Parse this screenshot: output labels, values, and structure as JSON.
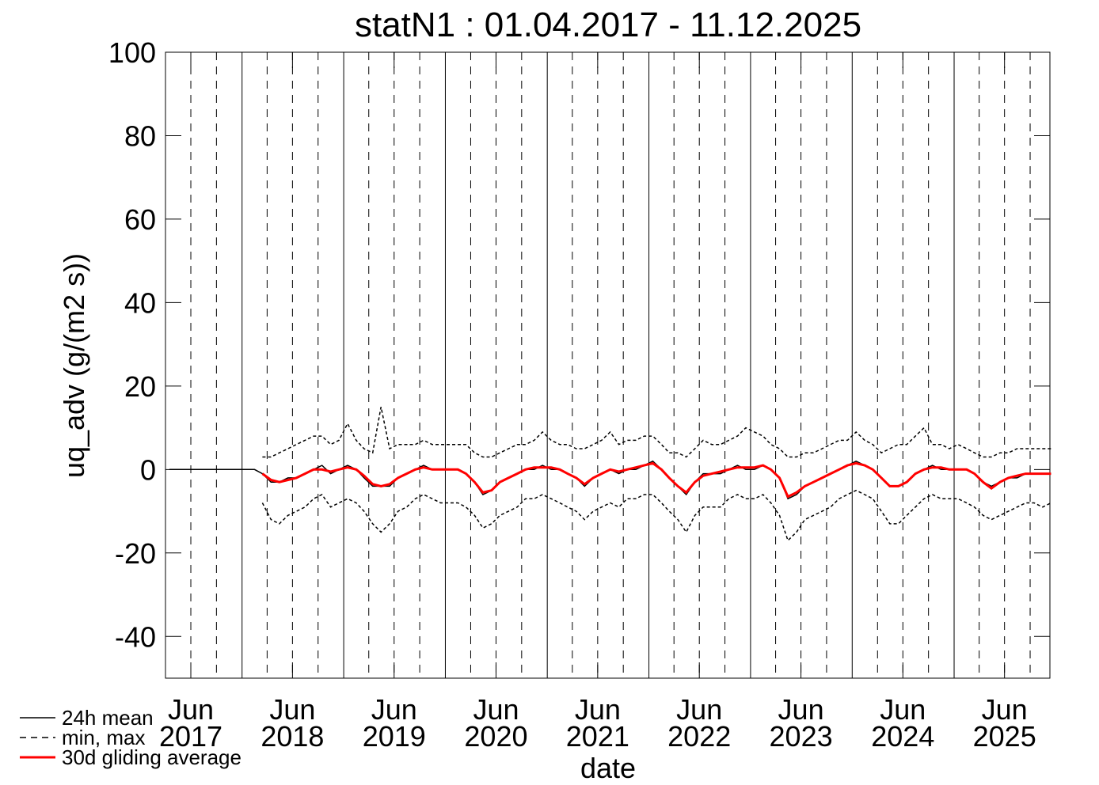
{
  "chart_data": {
    "type": "line",
    "title": "statN1 : 01.04.2017 - 11.12.2025",
    "xlabel": "date",
    "ylabel": "uq_adv (g/(m2 s))",
    "xlim": [
      "2017-04-01",
      "2025-12-11"
    ],
    "ylim": [
      -50,
      100
    ],
    "yticks": [
      -40,
      -20,
      0,
      20,
      40,
      60,
      80,
      100
    ],
    "xticks": [
      {
        "value": "2017-07-01",
        "label": [
          "Jun",
          "2017"
        ]
      },
      {
        "value": "2018-07-01",
        "label": [
          "Jun",
          "2018"
        ]
      },
      {
        "value": "2019-07-01",
        "label": [
          "Jun",
          "2019"
        ]
      },
      {
        "value": "2020-07-01",
        "label": [
          "Jun",
          "2020"
        ]
      },
      {
        "value": "2021-07-01",
        "label": [
          "Jun",
          "2021"
        ]
      },
      {
        "value": "2022-07-01",
        "label": [
          "Jun",
          "2022"
        ]
      },
      {
        "value": "2023-07-01",
        "label": [
          "Jun",
          "2023"
        ]
      },
      {
        "value": "2024-07-01",
        "label": [
          "Jun",
          "2024"
        ]
      },
      {
        "value": "2025-07-01",
        "label": [
          "Jun",
          "2025"
        ]
      }
    ],
    "xgrid_major": [
      "2018-01-01",
      "2019-01-01",
      "2020-01-01",
      "2021-01-01",
      "2022-01-01",
      "2023-01-01",
      "2024-01-01",
      "2025-01-01"
    ],
    "xgrid_minor": [
      "2017-07-01",
      "2017-10-01",
      "2018-04-01",
      "2018-07-01",
      "2018-10-01",
      "2019-04-01",
      "2019-07-01",
      "2019-10-01",
      "2020-04-01",
      "2020-07-01",
      "2020-10-01",
      "2021-04-01",
      "2021-07-01",
      "2021-10-01",
      "2022-04-01",
      "2022-07-01",
      "2022-10-01",
      "2023-04-01",
      "2023-07-01",
      "2023-10-01",
      "2024-04-01",
      "2024-07-01",
      "2024-10-01",
      "2025-04-01",
      "2025-07-01",
      "2025-10-01"
    ],
    "x": [
      "2017-04",
      "2017-05",
      "2017-06",
      "2017-07",
      "2017-08",
      "2017-09",
      "2017-10",
      "2017-11",
      "2017-12",
      "2018-01",
      "2018-02",
      "2018-03",
      "2018-04",
      "2018-05",
      "2018-06",
      "2018-07",
      "2018-08",
      "2018-09",
      "2018-10",
      "2018-11",
      "2018-12",
      "2019-01",
      "2019-02",
      "2019-03",
      "2019-04",
      "2019-05",
      "2019-06",
      "2019-07",
      "2019-08",
      "2019-09",
      "2019-10",
      "2019-11",
      "2019-12",
      "2020-01",
      "2020-02",
      "2020-03",
      "2020-04",
      "2020-05",
      "2020-06",
      "2020-07",
      "2020-08",
      "2020-09",
      "2020-10",
      "2020-11",
      "2020-12",
      "2021-01",
      "2021-02",
      "2021-03",
      "2021-04",
      "2021-05",
      "2021-06",
      "2021-07",
      "2021-08",
      "2021-09",
      "2021-10",
      "2021-11",
      "2021-12",
      "2022-01",
      "2022-02",
      "2022-03",
      "2022-04",
      "2022-05",
      "2022-06",
      "2022-07",
      "2022-08",
      "2022-09",
      "2022-10",
      "2022-11",
      "2022-12",
      "2023-01",
      "2023-02",
      "2023-03",
      "2023-04",
      "2023-05",
      "2023-06",
      "2023-07",
      "2023-08",
      "2023-09",
      "2023-10",
      "2023-11",
      "2023-12",
      "2024-01",
      "2024-02",
      "2024-03",
      "2024-04",
      "2024-05",
      "2024-06",
      "2024-07",
      "2024-08",
      "2024-09",
      "2024-10",
      "2024-11",
      "2024-12",
      "2025-01",
      "2025-02",
      "2025-03",
      "2025-04",
      "2025-05",
      "2025-06",
      "2025-07",
      "2025-08",
      "2025-09",
      "2025-10",
      "2025-11",
      "2025-12"
    ],
    "series": [
      {
        "name": "24h mean",
        "color": "#000000",
        "dash": false,
        "values": [
          0,
          0,
          0,
          0,
          0,
          0,
          0,
          0,
          0,
          0,
          0,
          -1,
          -3,
          -3,
          -2,
          -2,
          -1,
          0,
          1,
          -1,
          0,
          1,
          0,
          -2,
          -4,
          -4,
          -4,
          -2,
          -1,
          0,
          1,
          0,
          0,
          0,
          0,
          -1,
          -3,
          -6,
          -5,
          -3,
          -2,
          -1,
          0,
          0,
          1,
          0,
          0,
          -1,
          -2,
          -4,
          -2,
          -1,
          0,
          -1,
          0,
          0,
          1,
          2,
          0,
          -2,
          -4,
          -6,
          -3,
          -1,
          -1,
          -1,
          0,
          1,
          0,
          0,
          1,
          0,
          -2,
          -7,
          -6,
          -4,
          -3,
          -2,
          -1,
          0,
          1,
          2,
          1,
          0,
          -2,
          -4,
          -4,
          -3,
          -1,
          0,
          1,
          0,
          0,
          0,
          0,
          -1,
          -3,
          -4,
          -3,
          -2,
          -2,
          -1,
          -1,
          -1,
          -1
        ]
      },
      {
        "name": "min, max",
        "color": "#000000",
        "dash": true,
        "low": [
          null,
          null,
          null,
          null,
          null,
          null,
          null,
          null,
          null,
          null,
          null,
          -8,
          -12,
          -13,
          -11,
          -10,
          -9,
          -7,
          -6,
          -9,
          -8,
          -7,
          -8,
          -10,
          -13,
          -15,
          -13,
          -10,
          -9,
          -7,
          -6,
          -7,
          -8,
          -8,
          -8,
          -9,
          -11,
          -14,
          -13,
          -11,
          -10,
          -9,
          -7,
          -7,
          -6,
          -7,
          -8,
          -9,
          -10,
          -12,
          -10,
          -9,
          -8,
          -9,
          -7,
          -7,
          -6,
          -6,
          -8,
          -10,
          -12,
          -15,
          -11,
          -9,
          -9,
          -9,
          -7,
          -6,
          -7,
          -7,
          -6,
          -8,
          -11,
          -17,
          -15,
          -12,
          -11,
          -10,
          -9,
          -7,
          -6,
          -5,
          -6,
          -7,
          -10,
          -13,
          -13,
          -11,
          -9,
          -7,
          -6,
          -7,
          -7,
          -7,
          -8,
          -9,
          -11,
          -12,
          -11,
          -10,
          -9,
          -8,
          -8,
          -9,
          -8
        ],
        "high": [
          null,
          null,
          null,
          null,
          null,
          null,
          null,
          null,
          null,
          null,
          null,
          3,
          3,
          4,
          5,
          6,
          7,
          8,
          8,
          6,
          7,
          11,
          7,
          5,
          4,
          15,
          5,
          6,
          6,
          6,
          7,
          6,
          6,
          6,
          6,
          6,
          4,
          3,
          3,
          4,
          5,
          6,
          6,
          7,
          9,
          7,
          6,
          6,
          5,
          5,
          6,
          7,
          9,
          6,
          7,
          7,
          8,
          8,
          6,
          4,
          4,
          3,
          5,
          7,
          6,
          6,
          7,
          8,
          10,
          9,
          8,
          6,
          5,
          3,
          3,
          4,
          4,
          5,
          6,
          7,
          7,
          9,
          7,
          6,
          4,
          5,
          6,
          6,
          8,
          10,
          6,
          6,
          5,
          6,
          5,
          4,
          3,
          3,
          4,
          4,
          5,
          5,
          5,
          5,
          5
        ]
      },
      {
        "name": "30d gliding average",
        "color": "#ff0000",
        "dash": false,
        "values": [
          null,
          null,
          null,
          null,
          null,
          null,
          null,
          null,
          null,
          null,
          null,
          -1,
          -2.5,
          -3,
          -2.5,
          -2,
          -1,
          0,
          0,
          -0.5,
          0,
          0.5,
          0,
          -1.5,
          -3.5,
          -4,
          -3.5,
          -2,
          -1,
          0,
          0.5,
          0,
          0,
          0,
          0,
          -1,
          -3,
          -5.5,
          -5,
          -3,
          -2,
          -1,
          0,
          0.5,
          0.5,
          0.5,
          0,
          -1,
          -2,
          -3.5,
          -2,
          -1,
          0,
          -0.5,
          0,
          0.5,
          1,
          1.5,
          0,
          -2,
          -4,
          -5.5,
          -3,
          -1.5,
          -1,
          -0.5,
          0,
          0.5,
          0.5,
          0.5,
          1,
          0,
          -2,
          -6.5,
          -5.5,
          -4,
          -3,
          -2,
          -1,
          0,
          1,
          1.5,
          1,
          0,
          -2,
          -4,
          -4,
          -3,
          -1,
          0,
          0.5,
          0.5,
          0,
          0,
          0,
          -1,
          -3,
          -4.5,
          -3,
          -2,
          -1.5,
          -1,
          -1,
          -1,
          -1
        ]
      }
    ]
  }
}
